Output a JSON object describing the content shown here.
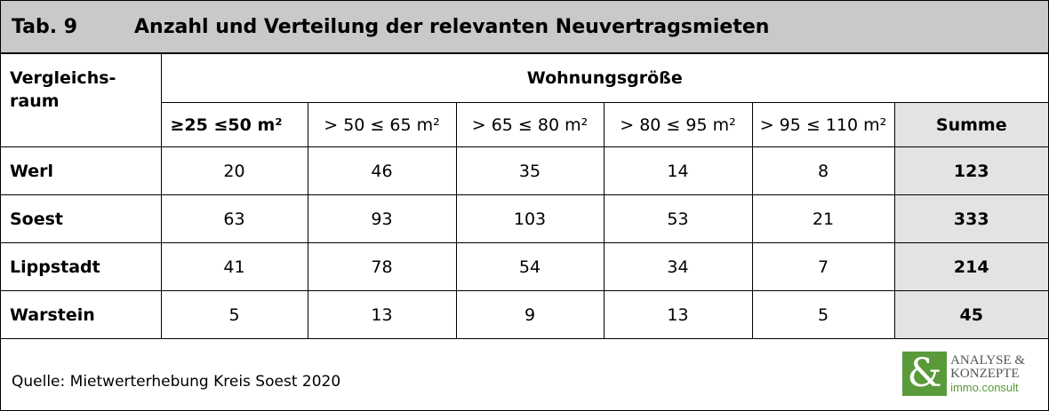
{
  "title": {
    "number": "Tab. 9",
    "text": "Anzahl und Verteilung der relevanten Neuvertragsmieten"
  },
  "table": {
    "row_header": "Vergleichs-\nraum",
    "group_header": "Wohnungsgröße",
    "columns": [
      "≥25 ≤50 m²",
      "> 50 ≤ 65 m²",
      "> 65 ≤ 80 m²",
      "> 80 ≤ 95 m²",
      "> 95 ≤ 110 m²"
    ],
    "sum_header": "Summe",
    "rows": [
      {
        "label": "Werl",
        "values": [
          20,
          46,
          35,
          14,
          8
        ],
        "sum": 123
      },
      {
        "label": "Soest",
        "values": [
          63,
          93,
          103,
          53,
          21
        ],
        "sum": 333
      },
      {
        "label": "Lippstadt",
        "values": [
          41,
          78,
          54,
          34,
          7
        ],
        "sum": 214
      },
      {
        "label": "Warstein",
        "values": [
          5,
          13,
          9,
          13,
          5
        ],
        "sum": 45
      }
    ]
  },
  "footer": {
    "source": "Quelle: Mietwerterhebung Kreis Soest 2020",
    "logo": {
      "symbol": "&",
      "lines": [
        "ANALYSE &",
        "KONZEPTE",
        "immo.consult"
      ]
    }
  }
}
